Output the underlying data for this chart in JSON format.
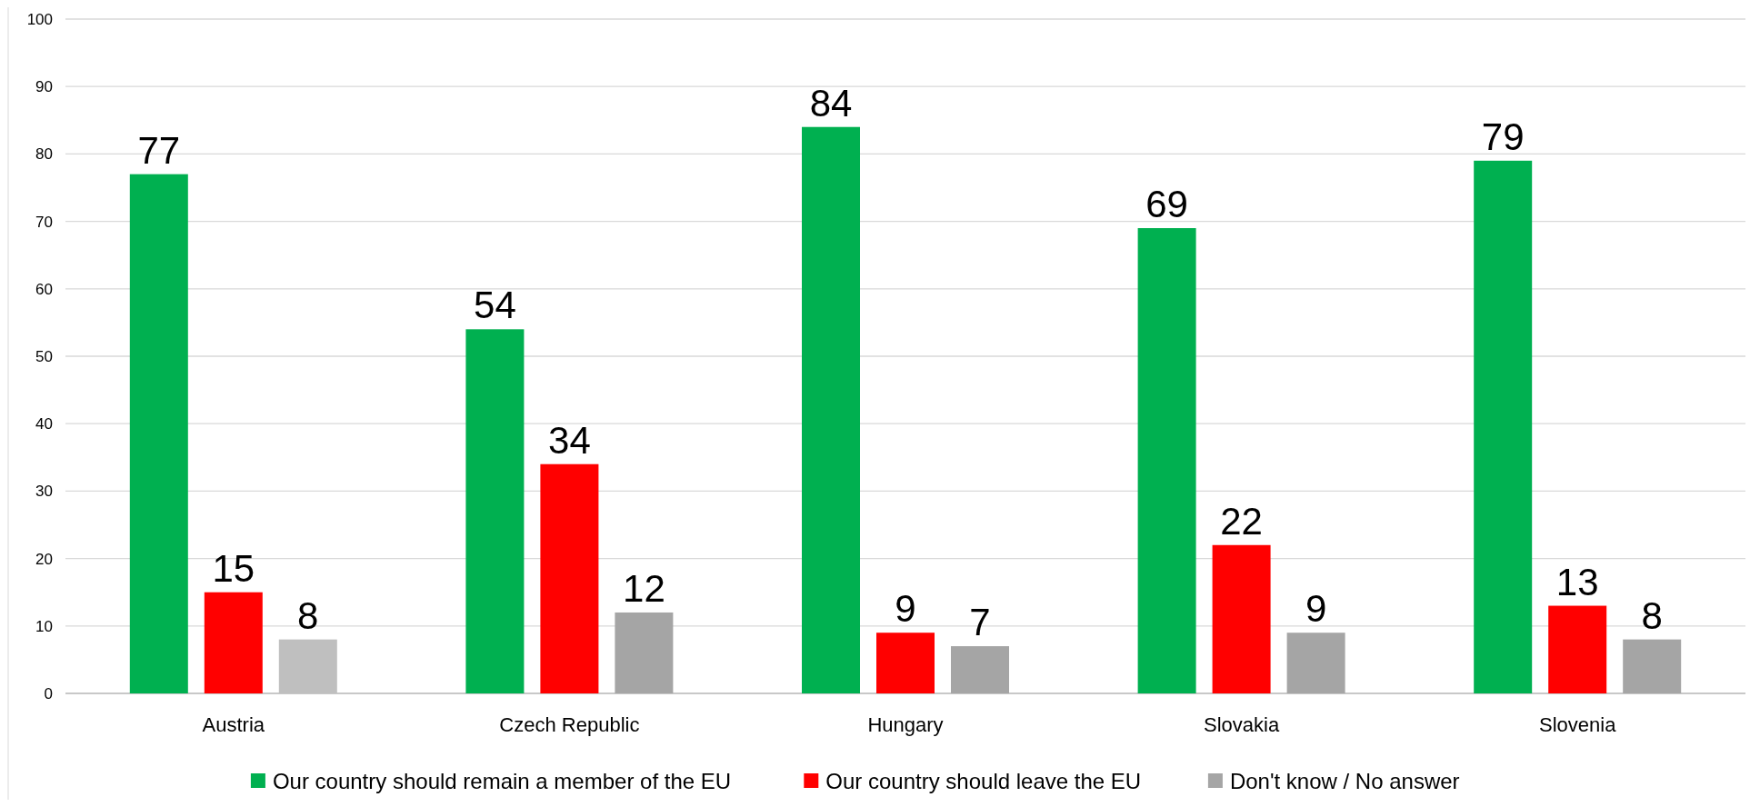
{
  "chart_data": {
    "type": "bar",
    "categories": [
      "Austria",
      "Czech Republic",
      "Hungary",
      "Slovakia",
      "Slovenia"
    ],
    "series": [
      {
        "name": "Our country should remain a member of the EU",
        "color": "#00b050",
        "values": [
          77,
          54,
          84,
          69,
          79
        ]
      },
      {
        "name": "Our country should leave the EU",
        "color": "#ff0000",
        "values": [
          15,
          34,
          9,
          22,
          13
        ]
      },
      {
        "name": "Don't know / No answer",
        "color": "#a5a5a5",
        "colors": [
          "#bfbfbf",
          "#a5a5a5",
          "#a5a5a5",
          "#a5a5a5",
          "#a5a5a5"
        ],
        "values": [
          8,
          12,
          7,
          9,
          8
        ]
      }
    ],
    "ylim": [
      0,
      100
    ],
    "yticks": [
      0,
      10,
      20,
      30,
      40,
      50,
      60,
      70,
      80,
      90,
      100
    ],
    "grid": "y",
    "legend": "bottom",
    "data_labels": true
  }
}
